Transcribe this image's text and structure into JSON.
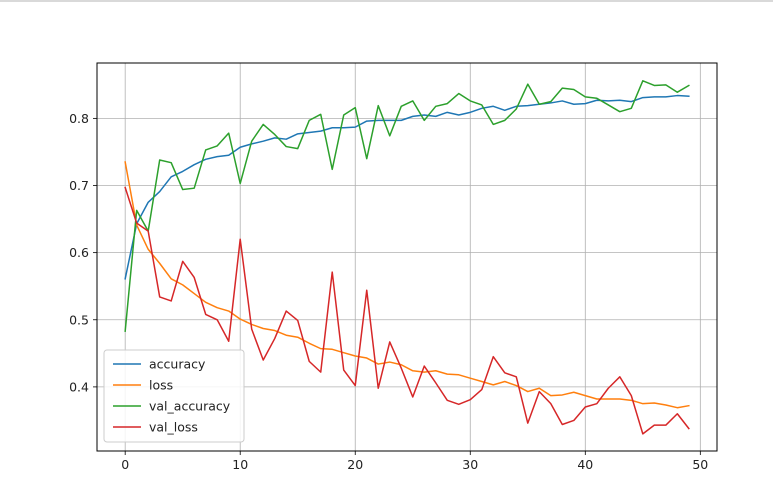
{
  "chart_data": {
    "type": "line",
    "title": "",
    "xlabel": "",
    "ylabel": "",
    "xlim": [
      -2.45,
      51.45
    ],
    "ylim": [
      0.3045,
      0.8825
    ],
    "xticks": [
      0,
      10,
      20,
      30,
      40,
      50
    ],
    "yticks": [
      0.4,
      0.5,
      0.6,
      0.7,
      0.8
    ],
    "grid": true,
    "legend_position": "lower-left",
    "x": [
      0,
      1,
      2,
      3,
      4,
      5,
      6,
      7,
      8,
      9,
      10,
      11,
      12,
      13,
      14,
      15,
      16,
      17,
      18,
      19,
      20,
      21,
      22,
      23,
      24,
      25,
      26,
      27,
      28,
      29,
      30,
      31,
      32,
      33,
      34,
      35,
      36,
      37,
      38,
      39,
      40,
      41,
      42,
      43,
      44,
      45,
      46,
      47,
      48,
      49
    ],
    "series": [
      {
        "name": "accuracy",
        "color": "#1f77b4",
        "values": [
          0.561,
          0.643,
          0.675,
          0.691,
          0.713,
          0.721,
          0.731,
          0.739,
          0.743,
          0.745,
          0.757,
          0.762,
          0.766,
          0.771,
          0.769,
          0.777,
          0.779,
          0.781,
          0.786,
          0.786,
          0.787,
          0.796,
          0.797,
          0.797,
          0.797,
          0.803,
          0.805,
          0.803,
          0.809,
          0.805,
          0.809,
          0.815,
          0.818,
          0.812,
          0.818,
          0.819,
          0.821,
          0.823,
          0.826,
          0.821,
          0.822,
          0.827,
          0.826,
          0.827,
          0.825,
          0.831,
          0.832,
          0.832,
          0.834,
          0.833
        ]
      },
      {
        "name": "loss",
        "color": "#ff7f0e",
        "values": [
          0.735,
          0.641,
          0.605,
          0.584,
          0.561,
          0.552,
          0.539,
          0.526,
          0.518,
          0.513,
          0.501,
          0.493,
          0.487,
          0.484,
          0.477,
          0.474,
          0.465,
          0.457,
          0.456,
          0.451,
          0.446,
          0.443,
          0.434,
          0.437,
          0.433,
          0.424,
          0.422,
          0.424,
          0.419,
          0.418,
          0.413,
          0.408,
          0.403,
          0.408,
          0.402,
          0.393,
          0.398,
          0.387,
          0.388,
          0.392,
          0.387,
          0.382,
          0.382,
          0.382,
          0.38,
          0.375,
          0.376,
          0.373,
          0.369,
          0.372
        ]
      },
      {
        "name": "val_accuracy",
        "color": "#2ca02c",
        "values": [
          0.483,
          0.663,
          0.632,
          0.738,
          0.734,
          0.694,
          0.696,
          0.753,
          0.759,
          0.778,
          0.703,
          0.766,
          0.791,
          0.776,
          0.758,
          0.755,
          0.797,
          0.806,
          0.724,
          0.805,
          0.816,
          0.74,
          0.819,
          0.774,
          0.818,
          0.826,
          0.797,
          0.818,
          0.822,
          0.837,
          0.826,
          0.82,
          0.791,
          0.797,
          0.814,
          0.851,
          0.821,
          0.825,
          0.845,
          0.843,
          0.832,
          0.83,
          0.82,
          0.81,
          0.815,
          0.856,
          0.849,
          0.85,
          0.839,
          0.849
        ]
      },
      {
        "name": "val_loss",
        "color": "#d62728",
        "values": [
          0.697,
          0.644,
          0.632,
          0.534,
          0.528,
          0.587,
          0.563,
          0.508,
          0.5,
          0.468,
          0.62,
          0.486,
          0.44,
          0.472,
          0.513,
          0.499,
          0.438,
          0.422,
          0.571,
          0.425,
          0.402,
          0.544,
          0.398,
          0.467,
          0.428,
          0.385,
          0.431,
          0.406,
          0.38,
          0.374,
          0.381,
          0.396,
          0.445,
          0.421,
          0.415,
          0.346,
          0.393,
          0.375,
          0.344,
          0.35,
          0.37,
          0.375,
          0.398,
          0.415,
          0.387,
          0.33,
          0.343,
          0.343,
          0.36,
          0.338
        ]
      }
    ]
  }
}
